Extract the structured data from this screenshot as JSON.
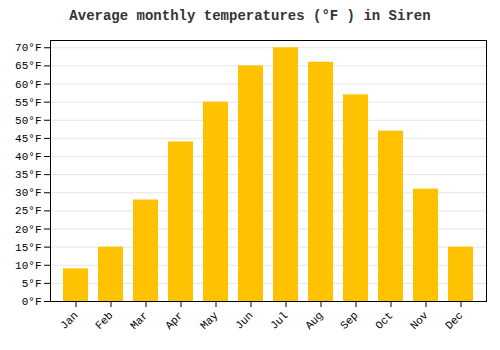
{
  "chart_data": {
    "type": "bar",
    "title": "Average monthly temperatures (°F ) in Siren",
    "categories": [
      "Jan",
      "Feb",
      "Mar",
      "Apr",
      "May",
      "Jun",
      "Jul",
      "Aug",
      "Sep",
      "Oct",
      "Nov",
      "Dec"
    ],
    "values": [
      9,
      15,
      28,
      44,
      55,
      65,
      70,
      66,
      57,
      47,
      31,
      15
    ],
    "color": "#FFC200",
    "ylim": [
      0,
      72
    ],
    "yticks": [
      {
        "value": 0,
        "label": "0°F"
      },
      {
        "value": 5,
        "label": "5°F"
      },
      {
        "value": 10,
        "label": "10°F"
      },
      {
        "value": 15,
        "label": "15°F"
      },
      {
        "value": 20,
        "label": "20°F"
      },
      {
        "value": 25,
        "label": "25°F"
      },
      {
        "value": 30,
        "label": "30°F"
      },
      {
        "value": 35,
        "label": "35°F"
      },
      {
        "value": 40,
        "label": "40°F"
      },
      {
        "value": 45,
        "label": "45°F"
      },
      {
        "value": 50,
        "label": "50°F"
      },
      {
        "value": 55,
        "label": "55°F"
      },
      {
        "value": 60,
        "label": "60°F"
      },
      {
        "value": 65,
        "label": "65°F"
      },
      {
        "value": 70,
        "label": "70°F"
      }
    ],
    "grid": true
  }
}
